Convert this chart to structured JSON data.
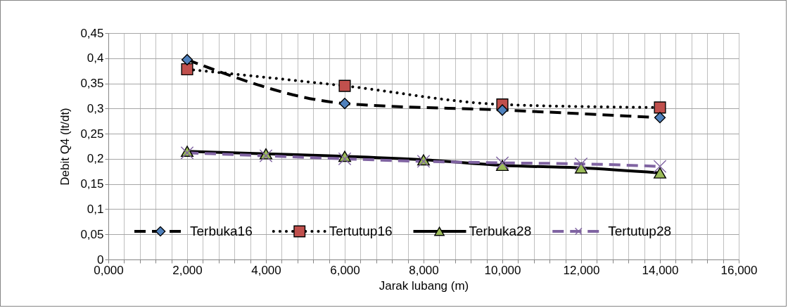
{
  "chart_data": {
    "type": "line",
    "xlabel": "Jarak lubang (m)",
    "ylabel": "Debit Q4 (lt/dt)",
    "xlim": [
      0,
      16
    ],
    "ylim": [
      0,
      0.45
    ],
    "xticks": [
      {
        "value": 0,
        "label": "0,000"
      },
      {
        "value": 0.4,
        "label": null
      },
      {
        "value": 0.8,
        "label": null
      },
      {
        "value": 1.2,
        "label": null
      },
      {
        "value": 1.6,
        "label": null
      },
      {
        "value": 2,
        "label": "2,000"
      },
      {
        "value": 2.4,
        "label": null
      },
      {
        "value": 2.8,
        "label": null
      },
      {
        "value": 3.2,
        "label": null
      },
      {
        "value": 3.6,
        "label": null
      },
      {
        "value": 4,
        "label": "4,000"
      },
      {
        "value": 4.4,
        "label": null
      },
      {
        "value": 4.8,
        "label": null
      },
      {
        "value": 5.2,
        "label": null
      },
      {
        "value": 5.6,
        "label": null
      },
      {
        "value": 6,
        "label": "6,000"
      },
      {
        "value": 6.4,
        "label": null
      },
      {
        "value": 6.8,
        "label": null
      },
      {
        "value": 7.2,
        "label": null
      },
      {
        "value": 7.6,
        "label": null
      },
      {
        "value": 8,
        "label": "8,000"
      },
      {
        "value": 8.4,
        "label": null
      },
      {
        "value": 8.8,
        "label": null
      },
      {
        "value": 9.2,
        "label": null
      },
      {
        "value": 9.6,
        "label": null
      },
      {
        "value": 10,
        "label": "10,000"
      },
      {
        "value": 10.4,
        "label": null
      },
      {
        "value": 10.8,
        "label": null
      },
      {
        "value": 11.2,
        "label": null
      },
      {
        "value": 11.6,
        "label": null
      },
      {
        "value": 12,
        "label": "12,000"
      },
      {
        "value": 12.4,
        "label": null
      },
      {
        "value": 12.8,
        "label": null
      },
      {
        "value": 13.2,
        "label": null
      },
      {
        "value": 13.6,
        "label": null
      },
      {
        "value": 14,
        "label": "14,000"
      },
      {
        "value": 14.4,
        "label": null
      },
      {
        "value": 14.8,
        "label": null
      },
      {
        "value": 15.2,
        "label": null
      },
      {
        "value": 15.6,
        "label": null
      },
      {
        "value": 16,
        "label": "16,000"
      }
    ],
    "yticks": [
      0,
      {
        "value": 0.05,
        "label": "0,05"
      },
      {
        "value": 0.1,
        "label": "0,1"
      },
      {
        "value": 0.15,
        "label": "0,15"
      },
      {
        "value": 0.2,
        "label": "0,2"
      },
      {
        "value": 0.25,
        "label": "0,25"
      },
      {
        "value": 0.3,
        "label": "0,3"
      },
      {
        "value": 0.35,
        "label": "0,35"
      },
      {
        "value": 0.4,
        "label": "0,4"
      },
      {
        "value": 0.45,
        "label": "0,45"
      }
    ],
    "grid": true,
    "legend": "bottom",
    "series": [
      {
        "name": "Terbuka16",
        "color": "#000000",
        "colors": [
          "#4f81bd",
          "#4f81bd",
          "#4f81bd",
          "#4f81bd"
        ],
        "marker": "diamond",
        "line_style": "dashed",
        "x": [
          2,
          6,
          10,
          14
        ],
        "values": [
          0.397,
          0.31,
          0.297,
          0.282
        ]
      },
      {
        "name": "Tertutup16",
        "color": "#000000",
        "colors": [
          "#c0504d",
          "#c0504d",
          "#c0504d",
          "#c0504d"
        ],
        "marker": "square",
        "line_style": "dotted",
        "x": [
          2,
          6,
          10,
          14
        ],
        "values": [
          0.378,
          0.345,
          0.308,
          0.302
        ]
      },
      {
        "name": "Terbuka28",
        "color": "#000000",
        "colors": [
          "#9bbb59",
          "#9bbb59",
          "#9bbb59",
          "#9bbb59",
          "#9bbb59",
          "#9bbb59",
          "#9bbb59"
        ],
        "marker": "triangle",
        "line_style": "solid",
        "x": [
          2,
          4,
          6,
          8,
          10,
          12,
          14
        ],
        "values": [
          0.215,
          0.21,
          0.205,
          0.198,
          0.187,
          0.182,
          0.172
        ]
      },
      {
        "name": "Tertutup28",
        "color": "#8064a2",
        "colors": [
          "#8064a2",
          "#8064a2",
          "#8064a2",
          "#8064a2",
          "#8064a2",
          "#8064a2",
          "#8064a2"
        ],
        "marker": "cross",
        "line_style": "dashed",
        "x": [
          2,
          4,
          6,
          8,
          10,
          12,
          14
        ],
        "values": [
          0.212,
          0.206,
          0.2,
          0.195,
          0.192,
          0.19,
          0.185
        ]
      }
    ]
  }
}
